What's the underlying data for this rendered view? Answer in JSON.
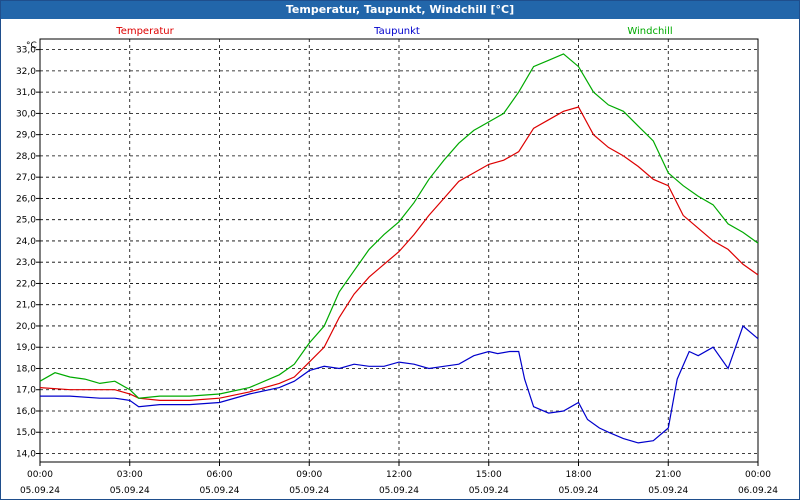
{
  "window": {
    "title": "Temperatur, Taupunkt, Windchill [°C]"
  },
  "chart_data": {
    "type": "line",
    "title": "Temperatur, Taupunkt, Windchill [°C]",
    "ylabel": "°C",
    "ylim": [
      13.6,
      33.5
    ],
    "y_ticks": [
      "33,0",
      "32,0",
      "31,0",
      "30,0",
      "29,0",
      "28,0",
      "27,0",
      "26,0",
      "25,0",
      "24,0",
      "23,0",
      "22,0",
      "21,0",
      "20,0",
      "19,0",
      "18,0",
      "17,0",
      "16,0",
      "15,0",
      "14,0"
    ],
    "xlim": [
      0,
      24
    ],
    "x_ticks": [
      {
        "hour": 0,
        "time": "00:00",
        "date": "05.09.24"
      },
      {
        "hour": 3,
        "time": "03:00",
        "date": "05.09.24"
      },
      {
        "hour": 6,
        "time": "06:00",
        "date": "05.09.24"
      },
      {
        "hour": 9,
        "time": "09:00",
        "date": "05.09.24"
      },
      {
        "hour": 12,
        "time": "12:00",
        "date": "05.09.24"
      },
      {
        "hour": 15,
        "time": "15:00",
        "date": "05.09.24"
      },
      {
        "hour": 18,
        "time": "18:00",
        "date": "05.09.24"
      },
      {
        "hour": 21,
        "time": "21:00",
        "date": "05.09.24"
      },
      {
        "hour": 24,
        "time": "00:00",
        "date": "06.09.24"
      }
    ],
    "grid": true,
    "legend_position": "top",
    "series": [
      {
        "name": "Temperatur",
        "color": "#dd0000",
        "x": [
          0,
          1,
          2,
          2.5,
          3,
          3.3,
          4,
          5,
          6,
          7,
          8,
          8.5,
          9,
          9.5,
          10,
          10.5,
          11,
          11.5,
          12,
          12.5,
          13,
          13.5,
          14,
          14.5,
          15,
          15.5,
          16,
          16.5,
          17,
          17.5,
          18,
          18.5,
          19,
          19.5,
          20,
          20.5,
          21,
          21.5,
          22,
          22.5,
          23,
          23.5,
          24
        ],
        "y": [
          17.1,
          17.0,
          17.0,
          17.0,
          16.8,
          16.6,
          16.5,
          16.5,
          16.6,
          16.9,
          17.3,
          17.6,
          18.3,
          19.0,
          20.4,
          21.5,
          22.3,
          22.9,
          23.5,
          24.3,
          25.2,
          26.0,
          26.8,
          27.2,
          27.6,
          27.8,
          28.2,
          29.3,
          29.7,
          30.1,
          30.3,
          29.0,
          28.4,
          28.0,
          27.5,
          26.9,
          26.6,
          25.2,
          24.6,
          24.0,
          23.6,
          22.9,
          22.4
        ]
      },
      {
        "name": "Taupunkt",
        "color": "#0000cc",
        "x": [
          0,
          1,
          2,
          2.5,
          3,
          3.3,
          4,
          5,
          6,
          7,
          8,
          8.5,
          9,
          9.5,
          10,
          10.5,
          11,
          11.5,
          12,
          12.5,
          13,
          13.5,
          14,
          14.5,
          15,
          15.3,
          15.7,
          16,
          16.2,
          16.5,
          17,
          17.5,
          18,
          18.3,
          18.7,
          19,
          19.5,
          20,
          20.5,
          21,
          21.3,
          21.7,
          22,
          22.5,
          23,
          23.5,
          24
        ],
        "y": [
          16.7,
          16.7,
          16.6,
          16.6,
          16.5,
          16.2,
          16.3,
          16.3,
          16.4,
          16.8,
          17.1,
          17.4,
          17.9,
          18.1,
          18.0,
          18.2,
          18.1,
          18.1,
          18.3,
          18.2,
          18.0,
          18.1,
          18.2,
          18.6,
          18.8,
          18.7,
          18.8,
          18.8,
          17.5,
          16.2,
          15.9,
          16.0,
          16.4,
          15.6,
          15.2,
          15.0,
          14.7,
          14.5,
          14.6,
          15.2,
          17.5,
          18.8,
          18.6,
          19.0,
          18.0,
          20.0,
          19.4
        ]
      },
      {
        "name": "Windchill",
        "color": "#00aa00",
        "x": [
          0,
          0.5,
          1,
          1.5,
          2,
          2.5,
          3,
          3.3,
          4,
          5,
          6,
          7,
          8,
          8.5,
          9,
          9.5,
          10,
          10.5,
          11,
          11.5,
          12,
          12.5,
          13,
          13.5,
          14,
          14.5,
          15,
          15.5,
          16,
          16.5,
          17,
          17.5,
          18,
          18.5,
          19,
          19.5,
          20,
          20.5,
          21,
          21.5,
          22,
          22.5,
          23,
          23.5,
          24
        ],
        "y": [
          17.4,
          17.8,
          17.6,
          17.5,
          17.3,
          17.4,
          17.0,
          16.6,
          16.7,
          16.7,
          16.8,
          17.1,
          17.7,
          18.2,
          19.2,
          20.0,
          21.6,
          22.6,
          23.6,
          24.3,
          24.9,
          25.8,
          26.9,
          27.8,
          28.6,
          29.2,
          29.6,
          30.0,
          31.0,
          32.2,
          32.5,
          32.8,
          32.2,
          31.0,
          30.4,
          30.1,
          29.4,
          28.7,
          27.2,
          26.6,
          26.1,
          25.7,
          24.8,
          24.4,
          23.9
        ]
      }
    ]
  }
}
